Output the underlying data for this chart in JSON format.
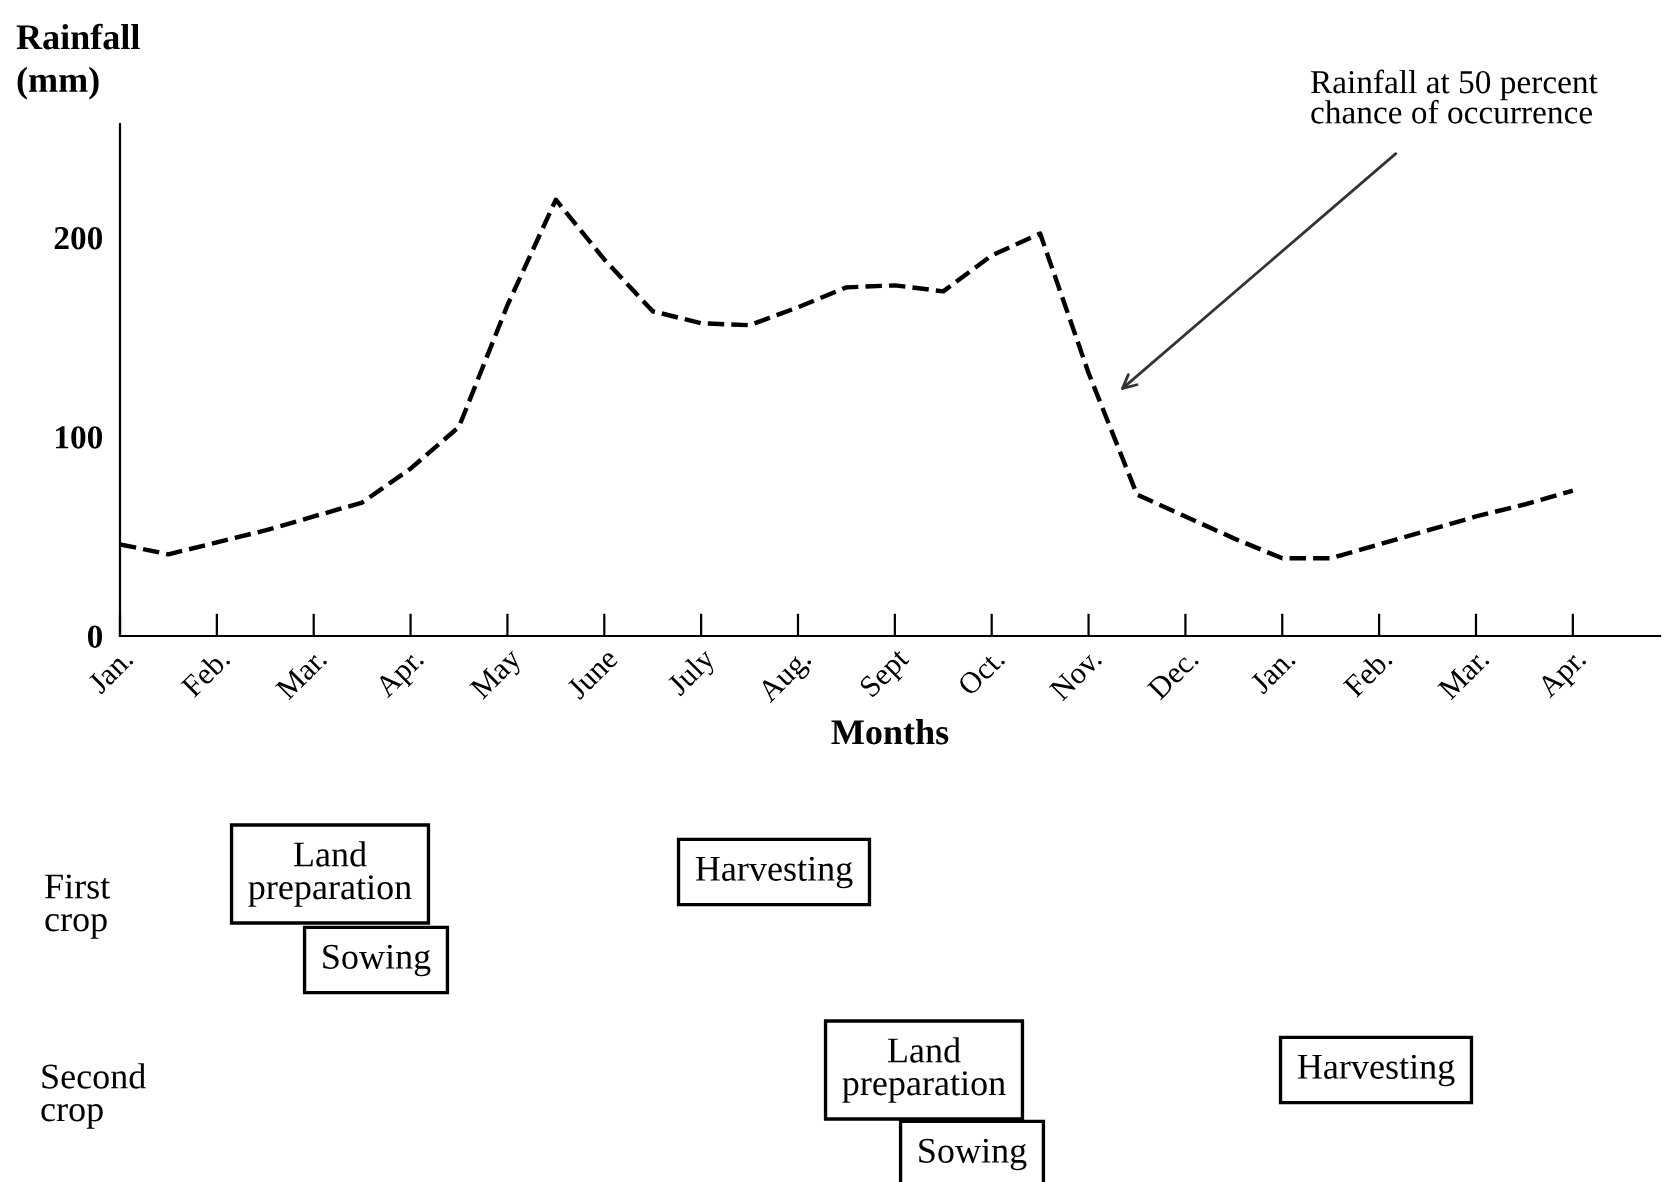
{
  "chart_data": {
    "type": "line",
    "xlabel": "Months",
    "ylabel": "Rainfall\n(mm)",
    "ylim": [
      0,
      257
    ],
    "yticks": [
      0,
      100,
      200
    ],
    "categories": [
      "Jan.",
      null,
      "Feb.",
      null,
      "Mar.",
      null,
      "Apr.",
      null,
      "May",
      null,
      "June",
      null,
      "July",
      null,
      "Aug.",
      null,
      "Sept",
      null,
      "Oct.",
      null,
      "Nov.",
      null,
      "Dec.",
      null,
      "Jan.",
      null,
      "Feb.",
      null,
      "Mar.",
      null,
      "Apr."
    ],
    "series": [
      {
        "color": "#000000",
        "values": [
          46,
          41,
          47,
          53,
          60,
          67,
          84,
          105,
          166,
          219,
          189,
          163,
          157,
          156,
          165,
          175,
          176,
          173,
          191,
          202,
          132,
          71,
          60,
          49,
          39,
          39,
          46,
          53,
          60,
          66,
          73
        ]
      }
    ],
    "line_style": "dashed",
    "marker": "none",
    "grid": false,
    "legend": false,
    "annotations": [
      "Rainfall at 50 percent\nchance of occurrence",
      "First\ncrop",
      "Land\npreparation",
      "Sowing",
      "Harvesting",
      "Second\ncrop",
      "Land\npreparation",
      "Sowing",
      "Harvesting"
    ]
  }
}
